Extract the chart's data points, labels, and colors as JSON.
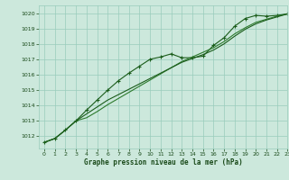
{
  "xlabel": "Graphe pression niveau de la mer (hPa)",
  "background_color": "#cce8dc",
  "grid_color": "#99ccbb",
  "text_color": "#1a4a1a",
  "line_color_dark": "#1a5c1a",
  "line_color_mid": "#2d7a2d",
  "xlim": [
    -0.5,
    23
  ],
  "ylim": [
    1011.2,
    1020.5
  ],
  "yticks": [
    1012,
    1013,
    1014,
    1015,
    1016,
    1017,
    1018,
    1019,
    1020
  ],
  "xticks": [
    0,
    1,
    2,
    3,
    4,
    5,
    6,
    7,
    8,
    9,
    10,
    11,
    12,
    13,
    14,
    15,
    16,
    17,
    18,
    19,
    20,
    21,
    22,
    23
  ],
  "series1_x": [
    0,
    1,
    2,
    3,
    4,
    5,
    6,
    7,
    8,
    9,
    10,
    11,
    12,
    13,
    14,
    15,
    16,
    17,
    18,
    19,
    20,
    21,
    22,
    23
  ],
  "series1_y": [
    1011.6,
    1011.85,
    1012.4,
    1013.0,
    1013.7,
    1014.35,
    1015.0,
    1015.6,
    1016.1,
    1016.55,
    1017.0,
    1017.15,
    1017.35,
    1017.1,
    1017.1,
    1017.2,
    1017.9,
    1018.4,
    1019.15,
    1019.65,
    1019.85,
    1019.8,
    1019.85,
    1019.95
  ],
  "series2_x": [
    0,
    1,
    2,
    3,
    4,
    5,
    6,
    7,
    8,
    9,
    10,
    11,
    12,
    13,
    14,
    15,
    16,
    17,
    18,
    19,
    20,
    21,
    22,
    23
  ],
  "series2_y": [
    1011.6,
    1011.85,
    1012.4,
    1013.0,
    1013.2,
    1013.6,
    1014.05,
    1014.45,
    1014.85,
    1015.25,
    1015.65,
    1016.05,
    1016.45,
    1016.85,
    1017.15,
    1017.45,
    1017.75,
    1018.15,
    1018.65,
    1019.05,
    1019.4,
    1019.6,
    1019.8,
    1019.95
  ],
  "series3_x": [
    0,
    1,
    2,
    3,
    4,
    5,
    6,
    7,
    8,
    9,
    10,
    11,
    12,
    13,
    14,
    15,
    16,
    17,
    18,
    19,
    20,
    21,
    22,
    23
  ],
  "series3_y": [
    1011.6,
    1011.85,
    1012.4,
    1013.0,
    1013.45,
    1013.9,
    1014.35,
    1014.7,
    1015.05,
    1015.4,
    1015.75,
    1016.1,
    1016.45,
    1016.8,
    1017.05,
    1017.3,
    1017.6,
    1018.0,
    1018.5,
    1018.95,
    1019.3,
    1019.55,
    1019.75,
    1019.95
  ]
}
